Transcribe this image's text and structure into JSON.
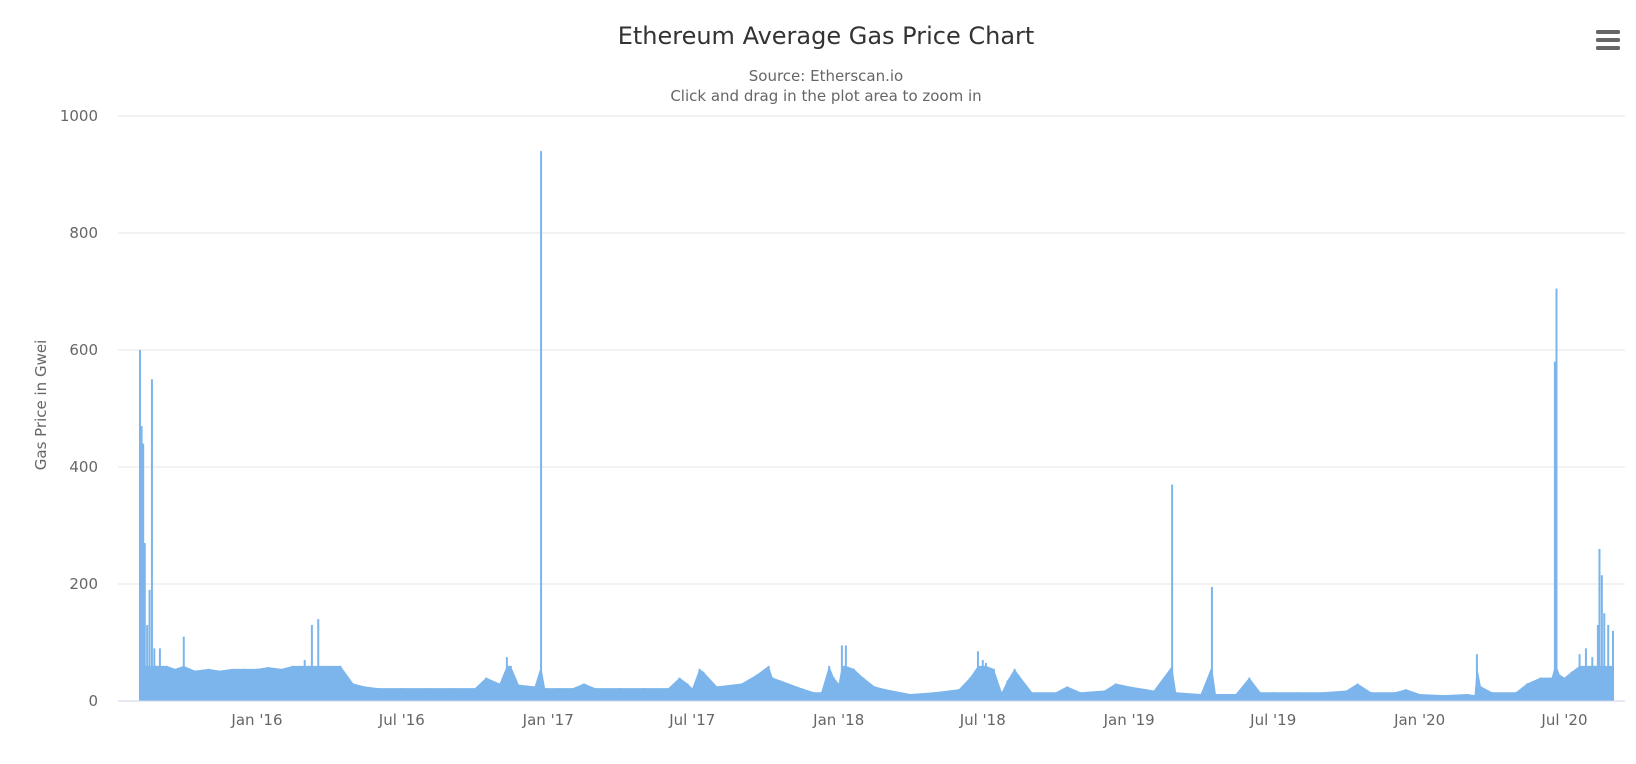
{
  "chart_data": {
    "type": "bar",
    "title": "Ethereum Average Gas Price Chart",
    "subtitle_lines": [
      "Source: Etherscan.io",
      "Click and drag in the plot area to zoom in"
    ],
    "xlabel": "",
    "ylabel": "Gas Price in Gwei",
    "ylim": [
      0,
      1000
    ],
    "y_ticks": [
      0,
      200,
      400,
      600,
      800,
      1000
    ],
    "y_tick_labels": [
      "0",
      "200",
      "400",
      "600",
      "800",
      "1000"
    ],
    "grid": true,
    "legend": "none",
    "x_range": [
      "2015-08-07",
      "2020-08-31"
    ],
    "x_ticks": [
      {
        "date": "2016-01-01",
        "label": "Jan '16"
      },
      {
        "date": "2016-07-01",
        "label": "Jul '16"
      },
      {
        "date": "2017-01-01",
        "label": "Jan '17"
      },
      {
        "date": "2017-07-01",
        "label": "Jul '17"
      },
      {
        "date": "2018-01-01",
        "label": "Jan '18"
      },
      {
        "date": "2018-07-01",
        "label": "Jul '18"
      },
      {
        "date": "2019-01-01",
        "label": "Jan '19"
      },
      {
        "date": "2019-07-01",
        "label": "Jul '19"
      },
      {
        "date": "2020-01-01",
        "label": "Jan '20"
      },
      {
        "date": "2020-07-01",
        "label": "Jul '20"
      }
    ],
    "series": [
      {
        "color": "#7cb5ec",
        "points": [
          [
            "2015-08-07",
            600
          ],
          [
            "2015-08-09",
            470
          ],
          [
            "2015-08-11",
            440
          ],
          [
            "2015-08-13",
            270
          ],
          [
            "2015-08-16",
            130
          ],
          [
            "2015-08-19",
            190
          ],
          [
            "2015-08-22",
            550
          ],
          [
            "2015-08-25",
            90
          ],
          [
            "2015-09-01",
            90
          ],
          [
            "2015-09-10",
            60
          ],
          [
            "2015-09-20",
            55
          ],
          [
            "2015-10-01",
            110
          ],
          [
            "2015-10-15",
            52
          ],
          [
            "2015-11-01",
            55
          ],
          [
            "2015-11-15",
            52
          ],
          [
            "2015-12-01",
            55
          ],
          [
            "2015-12-15",
            55
          ],
          [
            "2016-01-01",
            55
          ],
          [
            "2016-01-15",
            58
          ],
          [
            "2016-02-01",
            55
          ],
          [
            "2016-02-15",
            60
          ],
          [
            "2016-03-01",
            70
          ],
          [
            "2016-03-10",
            130
          ],
          [
            "2016-03-18",
            140
          ],
          [
            "2016-03-25",
            60
          ],
          [
            "2016-04-15",
            60
          ],
          [
            "2016-05-01",
            30
          ],
          [
            "2016-05-15",
            25
          ],
          [
            "2016-06-01",
            22
          ],
          [
            "2016-07-01",
            22
          ],
          [
            "2016-08-01",
            22
          ],
          [
            "2016-09-01",
            22
          ],
          [
            "2016-10-01",
            22
          ],
          [
            "2016-10-15",
            40
          ],
          [
            "2016-11-01",
            30
          ],
          [
            "2016-11-10",
            75
          ],
          [
            "2016-11-15",
            60
          ],
          [
            "2016-11-25",
            28
          ],
          [
            "2016-12-15",
            25
          ],
          [
            "2016-12-23",
            940
          ],
          [
            "2016-12-28",
            22
          ],
          [
            "2017-01-15",
            22
          ],
          [
            "2017-02-01",
            22
          ],
          [
            "2017-02-15",
            30
          ],
          [
            "2017-03-01",
            22
          ],
          [
            "2017-04-01",
            22
          ],
          [
            "2017-05-01",
            22
          ],
          [
            "2017-06-01",
            22
          ],
          [
            "2017-06-15",
            40
          ],
          [
            "2017-06-25",
            30
          ],
          [
            "2017-07-01",
            22
          ],
          [
            "2017-07-10",
            55
          ],
          [
            "2017-07-15",
            50
          ],
          [
            "2017-08-01",
            25
          ],
          [
            "2017-09-01",
            30
          ],
          [
            "2017-09-20",
            45
          ],
          [
            "2017-10-05",
            60
          ],
          [
            "2017-10-10",
            40
          ],
          [
            "2017-10-20",
            35
          ],
          [
            "2017-11-15",
            22
          ],
          [
            "2017-12-01",
            15
          ],
          [
            "2017-12-10",
            15
          ],
          [
            "2017-12-20",
            60
          ],
          [
            "2017-12-26",
            40
          ],
          [
            "2018-01-01",
            30
          ],
          [
            "2018-01-05",
            95
          ],
          [
            "2018-01-10",
            95
          ],
          [
            "2018-01-20",
            55
          ],
          [
            "2018-02-01",
            40
          ],
          [
            "2018-02-15",
            25
          ],
          [
            "2018-03-01",
            20
          ],
          [
            "2018-04-01",
            12
          ],
          [
            "2018-05-01",
            15
          ],
          [
            "2018-06-01",
            20
          ],
          [
            "2018-06-15",
            40
          ],
          [
            "2018-06-25",
            85
          ],
          [
            "2018-07-01",
            70
          ],
          [
            "2018-07-05",
            65
          ],
          [
            "2018-07-15",
            55
          ],
          [
            "2018-07-25",
            15
          ],
          [
            "2018-08-01",
            35
          ],
          [
            "2018-08-10",
            55
          ],
          [
            "2018-08-15",
            45
          ],
          [
            "2018-09-01",
            15
          ],
          [
            "2018-10-01",
            15
          ],
          [
            "2018-10-15",
            25
          ],
          [
            "2018-11-01",
            15
          ],
          [
            "2018-12-01",
            18
          ],
          [
            "2018-12-15",
            30
          ],
          [
            "2019-01-01",
            25
          ],
          [
            "2019-02-01",
            18
          ],
          [
            "2019-02-24",
            370
          ],
          [
            "2019-03-01",
            15
          ],
          [
            "2019-04-01",
            12
          ],
          [
            "2019-04-15",
            195
          ],
          [
            "2019-04-20",
            12
          ],
          [
            "2019-05-15",
            12
          ],
          [
            "2019-06-01",
            40
          ],
          [
            "2019-06-15",
            15
          ],
          [
            "2019-07-01",
            15
          ],
          [
            "2019-08-01",
            15
          ],
          [
            "2019-09-01",
            15
          ],
          [
            "2019-10-01",
            18
          ],
          [
            "2019-10-15",
            30
          ],
          [
            "2019-11-01",
            15
          ],
          [
            "2019-12-01",
            15
          ],
          [
            "2019-12-15",
            20
          ],
          [
            "2020-01-01",
            12
          ],
          [
            "2020-02-01",
            10
          ],
          [
            "2020-03-01",
            12
          ],
          [
            "2020-03-10",
            10
          ],
          [
            "2020-03-13",
            80
          ],
          [
            "2020-03-18",
            25
          ],
          [
            "2020-04-01",
            15
          ],
          [
            "2020-05-01",
            15
          ],
          [
            "2020-05-15",
            30
          ],
          [
            "2020-06-01",
            40
          ],
          [
            "2020-06-15",
            40
          ],
          [
            "2020-06-19",
            580
          ],
          [
            "2020-06-21",
            705
          ],
          [
            "2020-06-25",
            45
          ],
          [
            "2020-07-01",
            40
          ],
          [
            "2020-07-10",
            50
          ],
          [
            "2020-07-20",
            80
          ],
          [
            "2020-07-28",
            90
          ],
          [
            "2020-08-05",
            75
          ],
          [
            "2020-08-12",
            130
          ],
          [
            "2020-08-14",
            260
          ],
          [
            "2020-08-17",
            215
          ],
          [
            "2020-08-20",
            150
          ],
          [
            "2020-08-25",
            130
          ],
          [
            "2020-08-31",
            120
          ]
        ]
      }
    ]
  },
  "menu": {
    "icon": "hamburger-icon"
  }
}
